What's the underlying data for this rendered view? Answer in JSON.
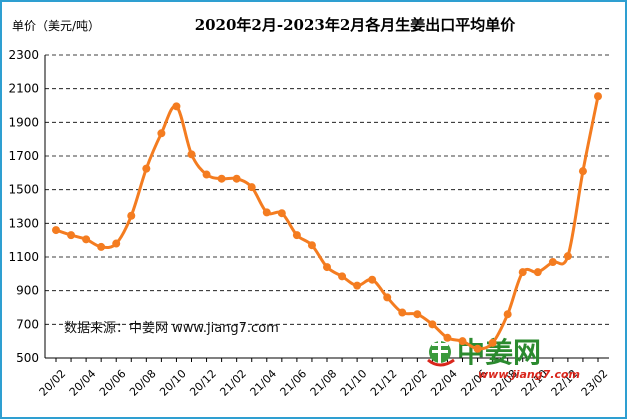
{
  "chart_data": {
    "type": "line",
    "title": "2020年2月-2023年2月各月生姜出口平均单价",
    "ylabel": "单价（美元/吨）",
    "xlabel": "",
    "ylim": [
      500,
      2300
    ],
    "yticks": [
      500,
      700,
      900,
      1100,
      1300,
      1500,
      1700,
      1900,
      2100,
      2300
    ],
    "grid": "horizontal-dashed",
    "legend": "none",
    "x": [
      "20/02",
      "20/03",
      "20/04",
      "20/05",
      "20/06",
      "20/07",
      "20/08",
      "20/09",
      "20/10",
      "20/11",
      "20/12",
      "21/01",
      "21/02",
      "21/03",
      "21/04",
      "21/05",
      "21/06",
      "21/07",
      "21/08",
      "21/09",
      "21/10",
      "21/11",
      "21/12",
      "22/01",
      "22/02",
      "22/03",
      "22/04",
      "22/05",
      "22/06",
      "22/07",
      "22/08",
      "22/09",
      "22/10",
      "22/11",
      "22/12",
      "23/01",
      "23/02"
    ],
    "xtick_labels": [
      "20/02",
      "20/04",
      "20/06",
      "20/08",
      "20/10",
      "20/12",
      "21/02",
      "21/04",
      "21/06",
      "21/08",
      "21/10",
      "21/12",
      "22/02",
      "22/04",
      "22/06",
      "22/08",
      "22/10",
      "22/12",
      "23/02"
    ],
    "series": [
      {
        "values": [
          1260,
          1230,
          1205,
          1160,
          1180,
          1345,
          1625,
          1835,
          1995,
          1710,
          1590,
          1565,
          1565,
          1515,
          1365,
          1360,
          1230,
          1170,
          1040,
          985,
          930,
          965,
          860,
          770,
          760,
          700,
          620,
          600,
          555,
          590,
          760,
          1010,
          1010,
          1070,
          1105,
          1610,
          2055
        ]
      }
    ],
    "source_note": "数据来源：中姜网 www.jiang7.com",
    "colors": {
      "line": "#f47c20",
      "frame": "#2e9fd1"
    }
  },
  "watermark": {
    "logo_text": "中姜网",
    "url": "www.jiang7.com"
  }
}
